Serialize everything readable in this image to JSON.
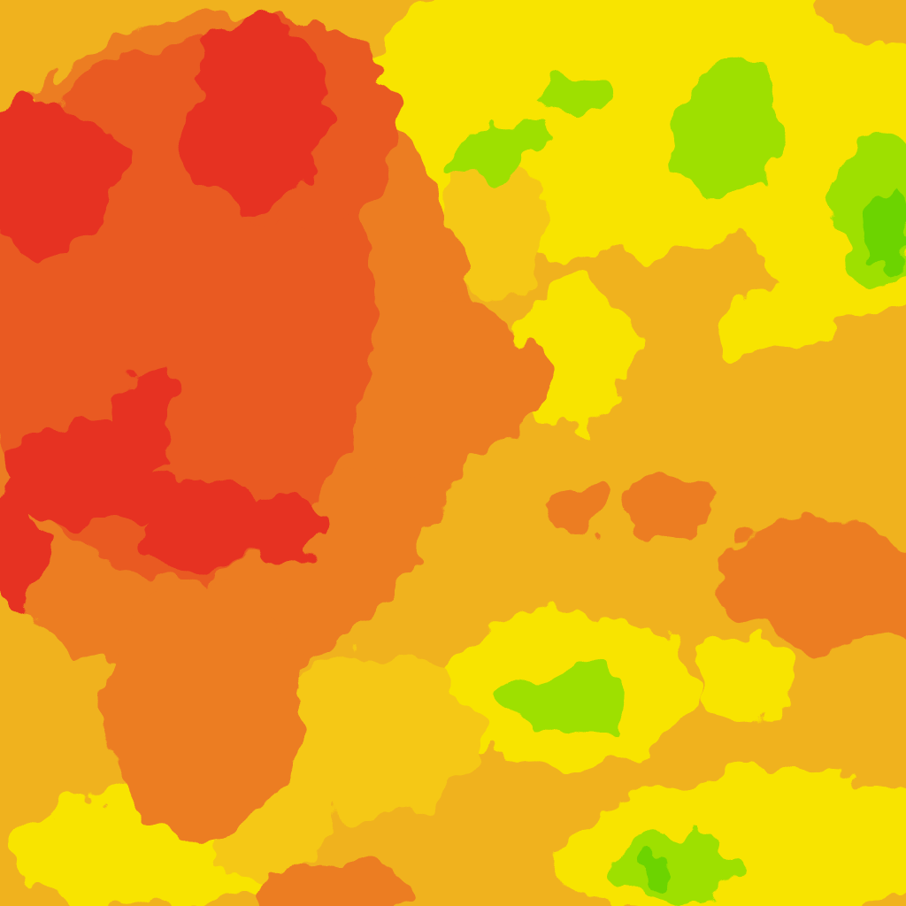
{
  "map": {
    "type": "heatmap-tile",
    "palette": {
      "base": "#f0b21e",
      "orange": "#ec7d22",
      "deep_orange": "#e95a22",
      "red": "#e63222",
      "yellow_orange": "#f5c814",
      "yellow": "#f8e400",
      "yellow_green": "#d8e800",
      "green": "#9ee000",
      "deep_green": "#6cd400"
    }
  }
}
